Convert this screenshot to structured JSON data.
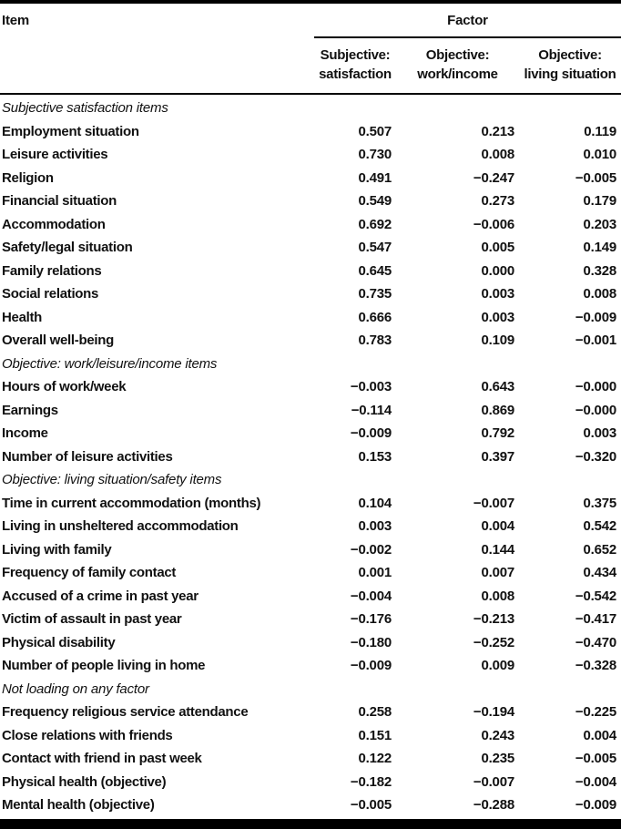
{
  "page": {
    "background": "#ffffff",
    "text_color": "#111111",
    "rule_color": "#000000"
  },
  "table": {
    "item_header": "Item",
    "factor_header": "Factor",
    "columns": [
      {
        "line1": "Subjective:",
        "line2": "satisfaction"
      },
      {
        "line1": "Objective:",
        "line2": "work/income"
      },
      {
        "line1": "Objective:",
        "line2": "living situation"
      }
    ],
    "sections": [
      {
        "label": "Subjective satisfaction items",
        "rows": [
          {
            "item": "Employment situation",
            "values": [
              "0.507",
              "0.213",
              "0.119"
            ]
          },
          {
            "item": "Leisure activities",
            "values": [
              "0.730",
              "0.008",
              "0.010"
            ]
          },
          {
            "item": "Religion",
            "values": [
              "0.491",
              "−0.247",
              "−0.005"
            ]
          },
          {
            "item": "Financial situation",
            "values": [
              "0.549",
              "0.273",
              "0.179"
            ]
          },
          {
            "item": "Accommodation",
            "values": [
              "0.692",
              "−0.006",
              "0.203"
            ]
          },
          {
            "item": "Safety/legal situation",
            "values": [
              "0.547",
              "0.005",
              "0.149"
            ]
          },
          {
            "item": "Family relations",
            "values": [
              "0.645",
              "0.000",
              "0.328"
            ]
          },
          {
            "item": "Social relations",
            "values": [
              "0.735",
              "0.003",
              "0.008"
            ]
          },
          {
            "item": "Health",
            "values": [
              "0.666",
              "0.003",
              "−0.009"
            ]
          },
          {
            "item": "Overall well-being",
            "values": [
              "0.783",
              "0.109",
              "−0.001"
            ]
          }
        ]
      },
      {
        "label": "Objective: work/leisure/income items",
        "rows": [
          {
            "item": "Hours of work/week",
            "values": [
              "−0.003",
              "0.643",
              "−0.000"
            ]
          },
          {
            "item": "Earnings",
            "values": [
              "−0.114",
              "0.869",
              "−0.000"
            ]
          },
          {
            "item": "Income",
            "values": [
              "−0.009",
              "0.792",
              "0.003"
            ]
          },
          {
            "item": "Number of leisure activities",
            "values": [
              "0.153",
              "0.397",
              "−0.320"
            ]
          }
        ]
      },
      {
        "label": "Objective: living situation/safety items",
        "rows": [
          {
            "item": "Time in current accommodation (months)",
            "values": [
              "0.104",
              "−0.007",
              "0.375"
            ]
          },
          {
            "item": "Living in unsheltered accommodation",
            "values": [
              "0.003",
              "0.004",
              "0.542"
            ]
          },
          {
            "item": "Living with family",
            "values": [
              "−0.002",
              "0.144",
              "0.652"
            ]
          },
          {
            "item": "Frequency of family contact",
            "values": [
              "0.001",
              "0.007",
              "0.434"
            ]
          },
          {
            "item": "Accused of a crime in past year",
            "values": [
              "−0.004",
              "0.008",
              "−0.542"
            ]
          },
          {
            "item": "Victim of assault in past year",
            "values": [
              "−0.176",
              "−0.213",
              "−0.417"
            ]
          },
          {
            "item": "Physical disability",
            "values": [
              "−0.180",
              "−0.252",
              "−0.470"
            ]
          },
          {
            "item": "Number of people living in home",
            "values": [
              "−0.009",
              "0.009",
              "−0.328"
            ]
          }
        ]
      },
      {
        "label": "Not loading on any factor",
        "rows": [
          {
            "item": "Frequency religious service attendance",
            "values": [
              "0.258",
              "−0.194",
              "−0.225"
            ]
          },
          {
            "item": "Close relations with friends",
            "values": [
              "0.151",
              "0.243",
              "0.004"
            ]
          },
          {
            "item": "Contact with friend in past week",
            "values": [
              "0.122",
              "0.235",
              "−0.005"
            ]
          },
          {
            "item": "Physical health (objective)",
            "values": [
              "−0.182",
              "−0.007",
              "−0.004"
            ]
          },
          {
            "item": "Mental health (objective)",
            "values": [
              "−0.005",
              "−0.288",
              "−0.009"
            ]
          }
        ]
      }
    ]
  }
}
